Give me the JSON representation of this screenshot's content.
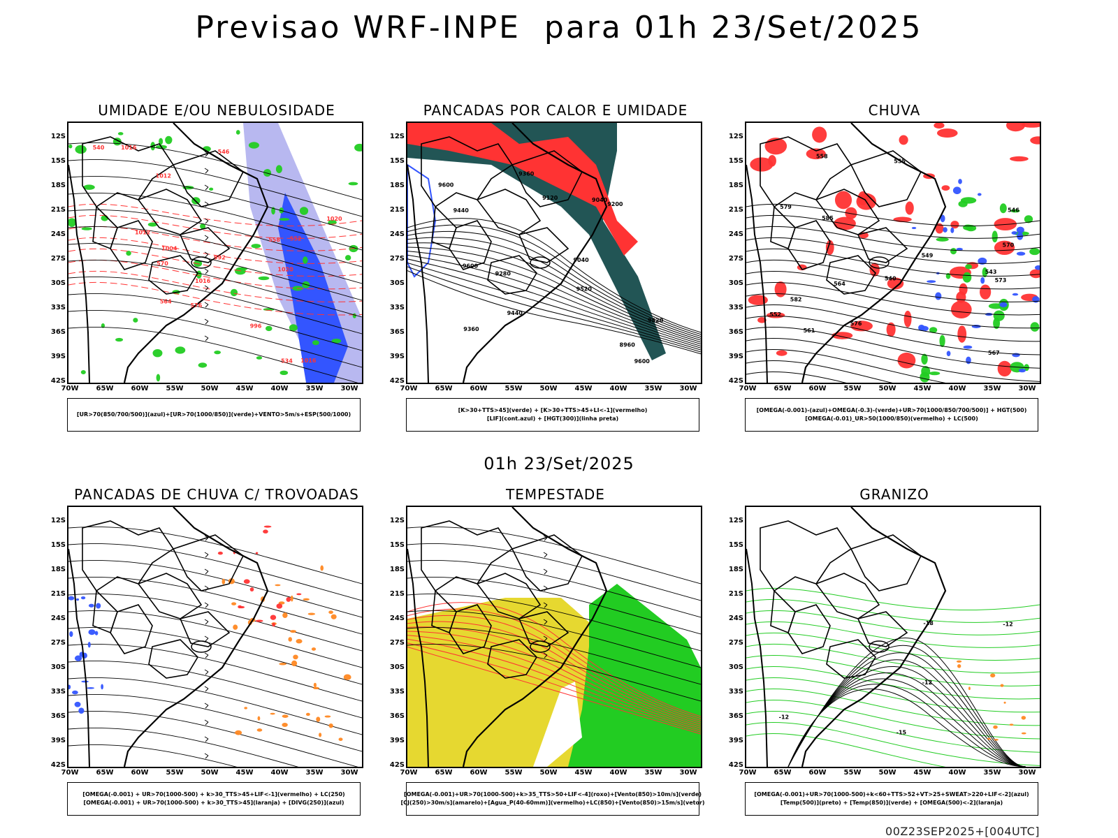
{
  "main_title": "Previsao WRF-INPE  para 01h 23/Set/2025",
  "mid_title": "01h 23/Set/2025",
  "footer": "00Z23SEP2025+[004UTC]",
  "lat_labels": [
    "12S",
    "15S",
    "18S",
    "21S",
    "24S",
    "27S",
    "30S",
    "33S",
    "36S",
    "39S",
    "42S"
  ],
  "lon_labels": [
    "70W",
    "65W",
    "60W",
    "55W",
    "50W",
    "45W",
    "40W",
    "35W",
    "30W"
  ],
  "colors": {
    "blue": "#3355ff",
    "lavender": "#b8b8f0",
    "green": "#22cc22",
    "red": "#ff3333",
    "darkteal": "#225555",
    "orange": "#ff8822",
    "yellow": "#e6d830",
    "black": "#000000"
  },
  "panels": [
    {
      "id": "umidade",
      "title": "UMIDADE E/OU NEBULOSIDADE",
      "legend": [
        "[UR>70(850/700/500)](azul)+[UR>70(1000/850)](verde)+VENTO>5m/s+ESP(500/1000)"
      ],
      "contour_labels": [
        "1016",
        "1012",
        "1016",
        "1020",
        "1016",
        "1012",
        "576",
        "570",
        "564",
        "558",
        "552",
        "546",
        "540",
        "534",
        "1004",
        "996",
        "992",
        "1020"
      ]
    },
    {
      "id": "pancadas",
      "title": "PANCADAS POR CALOR E UMIDADE",
      "legend": [
        "[K>30+TTS>45](verde) + [K>30+TTS>45+LI<-1](vermelho)",
        "[LIF](cont.azul) + [HGT(300)](linha preta)"
      ],
      "contour_labels": [
        "9600",
        "9600",
        "9520",
        "9600",
        "9520",
        "9440",
        "9360",
        "9280",
        "9200",
        "9120",
        "9040",
        "8960",
        "9440",
        "9360",
        "9040"
      ]
    },
    {
      "id": "chuva",
      "title": "CHUVA",
      "legend": [
        "[OMEGA(-0.001)-(azul)+OMEGA(-0.3)-(verde)+UR>70(1000/850/700/500)] + HGT(500)",
        "[OMEGA(-0.01)_UR>50(1000/850)(vermelho) + LC(500)"
      ],
      "contour_labels": [
        "585",
        "582",
        "579",
        "576",
        "573",
        "570",
        "567",
        "564",
        "561",
        "558",
        "555",
        "552",
        "549",
        "546",
        "543",
        "540"
      ]
    },
    {
      "id": "pancadas-trovoadas",
      "title": "PANCADAS DE CHUVA C/ TROVOADAS",
      "legend": [
        "[OMEGA(-0.001) + UR>70(1000-500) + k>30_TTS>45+LIF<-1](vermelho) + LC(250)",
        "[OMEGA(-0.001) + UR>70(1000-500) + k>30_TTS>45](laranja) + [DIVG(250)](azul)"
      ],
      "contour_labels": []
    },
    {
      "id": "tempestade",
      "title": "TEMPESTADE",
      "legend": [
        "[OMEGA(-0.001)+UR>70(1000-500)+k>35_TTS>50+LIF<-4](roxo)+[Vento(850)>10m/s](verde)",
        "[CJ(250)>30m/s](amarelo)+[Agua_P(40-60mm)](vermelho)+LC(850)+[Vento(850)>15m/s](vetor)"
      ],
      "contour_labels": []
    },
    {
      "id": "granizo",
      "title": "GRANIZO",
      "legend": [
        "[OMEGA(-0.001)+UR>70(1000-500)+k<60+TTS>52+VT>25+SWEAT>220+LIF<-2](azul)",
        "[Temp(500)](preto) + [Temp(850)](verde) + [OMEGA(500)<-2](laranja)"
      ],
      "contour_labels": [
        "-12",
        "-12",
        "-15",
        "-18",
        "-12"
      ]
    }
  ]
}
